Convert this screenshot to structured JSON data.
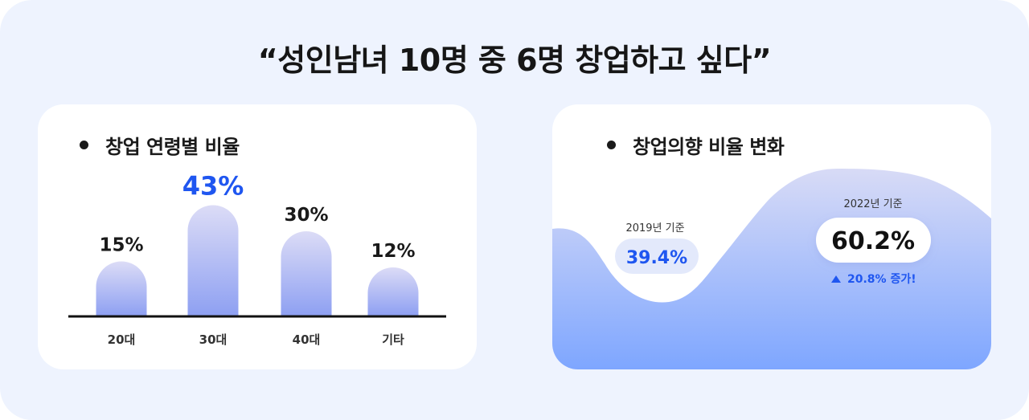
{
  "headline": "“성인남녀 10명 중 6명 창업하고 싶다”",
  "chart_data": [
    {
      "type": "bar",
      "title": "창업 연령별 비율",
      "categories": [
        "20대",
        "30대",
        "40대",
        "기타"
      ],
      "values": [
        15,
        43,
        30,
        12
      ],
      "value_labels": [
        "15%",
        "43%",
        "30%",
        "12%"
      ],
      "unit": "%",
      "highlight_index": 1,
      "colors": {
        "bar_top": "#dcdcf6",
        "bar_bottom": "#8ea0f2",
        "highlight_label": "#1f56f0",
        "label": "#1a1a1a"
      }
    },
    {
      "type": "area",
      "title": "창업의향 비율 변화",
      "points": [
        {
          "label": "2019년 기준",
          "value": 39.4,
          "value_label": "39.4%"
        },
        {
          "label": "2022년 기준",
          "value": 60.2,
          "value_label": "60.2%"
        }
      ],
      "change": {
        "icon": "up-triangle-icon",
        "text": "20.8% 증가!"
      },
      "colors": {
        "area_top": "#d5d9f6",
        "area_bottom": "#7ea6ff",
        "value_accent": "#1f56f0",
        "badge_2019": "#e3e9fb",
        "badge_2022": "#ffffff"
      }
    }
  ]
}
